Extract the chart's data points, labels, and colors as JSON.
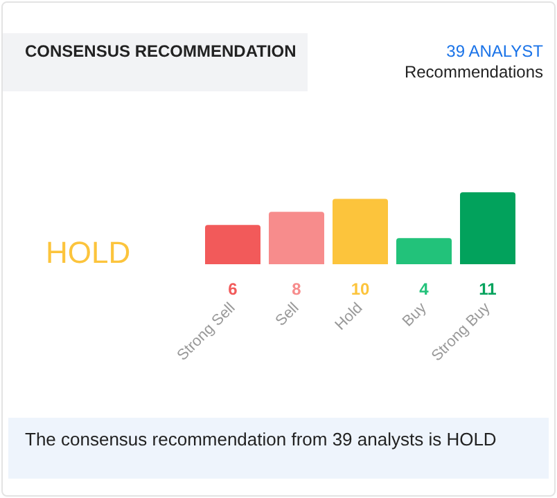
{
  "chart_data": {
    "type": "bar",
    "title": "CONSENSUS RECOMMENDATION",
    "categories": [
      "Strong Sell",
      "Sell",
      "Hold",
      "Buy",
      "Strong Buy"
    ],
    "values": [
      6,
      8,
      10,
      4,
      11
    ],
    "colors": [
      "#f25a5a",
      "#f78c8c",
      "#fcc43c",
      "#22c27a",
      "#02a25c"
    ],
    "data_labels": true,
    "annotations": [
      "39 ANALYST",
      "Recommendations",
      "HOLD",
      "The consensus recommendation from 39 analysts is HOLD"
    ]
  }
}
